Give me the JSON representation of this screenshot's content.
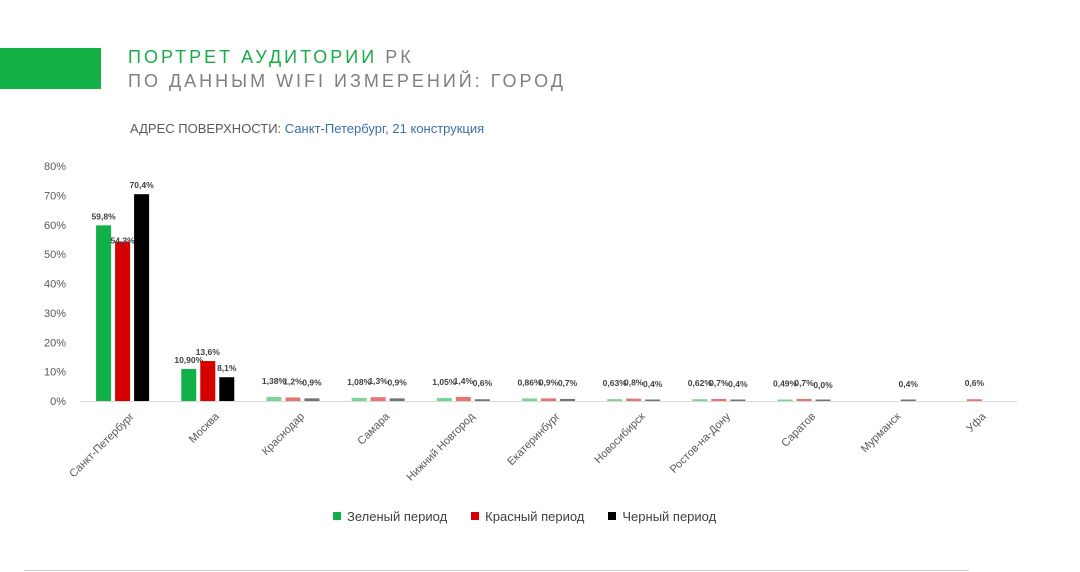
{
  "header": {
    "title_main": "ПОРТРЕТ АУДИТОРИИ",
    "title_suffix": "РК",
    "subtitle": "ПО ДАННЫМ WIFI ИЗМЕРЕНИЙ: ГОРОД",
    "address_label": "АДРЕС ПОВЕРХНОСТИ:",
    "address_value": "Санкт-Петербург, 21 конструкция"
  },
  "colors": {
    "accent": "#13b146",
    "green": "#12b048",
    "red": "#d60000",
    "black": "#000000"
  },
  "chart_data": {
    "type": "bar",
    "title": "",
    "xlabel": "",
    "ylabel": "",
    "ylim": [
      0,
      80
    ],
    "yticks": [
      0,
      10,
      20,
      30,
      40,
      50,
      60,
      70,
      80
    ],
    "ytick_labels": [
      "0%",
      "10%",
      "20%",
      "30%",
      "40%",
      "50%",
      "60%",
      "70%",
      "80%"
    ],
    "grid": false,
    "legend_position": "bottom",
    "categories": [
      "Санкт-Петербург",
      "Москва",
      "Краснодар",
      "Самара",
      "Нижний Новгород",
      "Екатеринбург",
      "Новосибирск",
      "Ростов-на-Дону",
      "Саратов",
      "Мурманск",
      "Уфа"
    ],
    "series": [
      {
        "name": "Зеленый период",
        "color": "#12b048",
        "values": [
          59.8,
          10.9,
          1.38,
          1.08,
          1.05,
          0.86,
          0.63,
          0.62,
          0.49,
          null,
          null
        ],
        "labels": [
          "59,8%",
          "10,90%",
          "1,38%",
          "1,08%",
          "1,05%",
          "0,86%",
          "0,63%",
          "0,62%",
          "0,49%",
          "",
          ""
        ]
      },
      {
        "name": "Красный период",
        "color": "#d60000",
        "values": [
          54.3,
          13.6,
          1.2,
          1.3,
          1.4,
          0.9,
          0.8,
          0.7,
          0.7,
          null,
          0.6
        ],
        "labels": [
          "54,3%",
          "13,6%",
          "1,2%",
          "1,3%",
          "1,4%",
          "0,9%",
          "0,8%",
          "0,7%",
          "0,7%",
          "",
          "0,6%"
        ]
      },
      {
        "name": "Черный период",
        "color": "#000000",
        "values": [
          70.4,
          8.1,
          0.9,
          0.9,
          0.6,
          0.7,
          0.4,
          0.4,
          0.0,
          0.4,
          null
        ],
        "labels": [
          "70,4%",
          "8,1%",
          "0,9%",
          "0,9%",
          "0,6%",
          "0,7%",
          "0,4%",
          "0,4%",
          "0,0%",
          "0,4%",
          ""
        ]
      }
    ]
  }
}
